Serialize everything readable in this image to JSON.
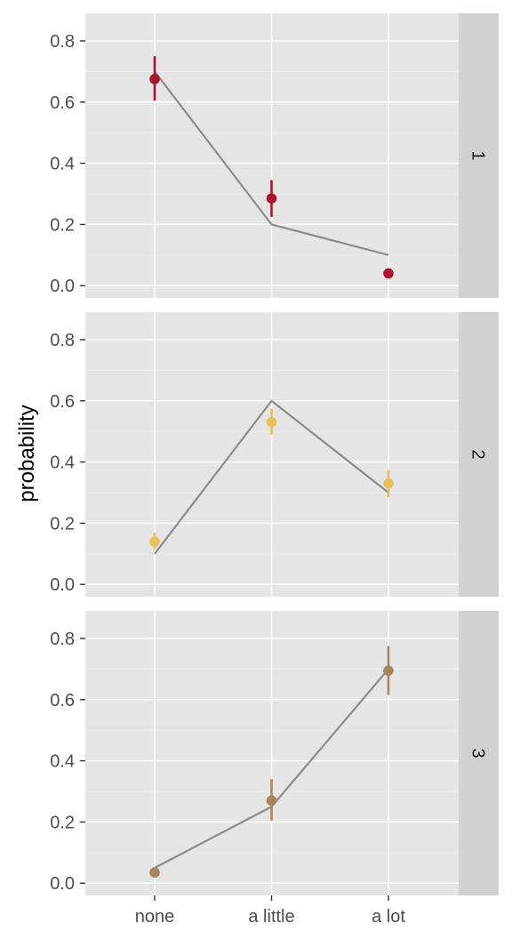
{
  "chart_data": {
    "type": "scatter",
    "ylabel": "probability",
    "xlabel": "",
    "categories": [
      "none",
      "a little",
      "a lot"
    ],
    "y_ticks": [
      "0.0",
      "0.2",
      "0.4",
      "0.6",
      "0.8"
    ],
    "ylim": [
      -0.04,
      0.89
    ],
    "grid": true,
    "colors": {
      "line": "#8c8c8c",
      "panel_bg": "#e5e5e5",
      "strip_bg": "#d1d1d1"
    },
    "panels": [
      {
        "label": "1",
        "color": "#a8162f",
        "points": [
          {
            "category": "none",
            "y": 0.675,
            "lo": 0.605,
            "hi": 0.75
          },
          {
            "category": "a little",
            "y": 0.285,
            "lo": 0.225,
            "hi": 0.345
          },
          {
            "category": "a lot",
            "y": 0.04,
            "lo": 0.04,
            "hi": 0.04
          }
        ],
        "line": [
          0.7,
          0.2,
          0.1
        ]
      },
      {
        "label": "2",
        "color": "#e8c15a",
        "points": [
          {
            "category": "none",
            "y": 0.14,
            "lo": 0.115,
            "hi": 0.17
          },
          {
            "category": "a little",
            "y": 0.53,
            "lo": 0.49,
            "hi": 0.575
          },
          {
            "category": "a lot",
            "y": 0.33,
            "lo": 0.285,
            "hi": 0.375
          }
        ],
        "line": [
          0.1,
          0.6,
          0.3
        ]
      },
      {
        "label": "3",
        "color": "#a8845a",
        "points": [
          {
            "category": "none",
            "y": 0.035,
            "lo": 0.035,
            "hi": 0.035
          },
          {
            "category": "a little",
            "y": 0.27,
            "lo": 0.205,
            "hi": 0.34
          },
          {
            "category": "a lot",
            "y": 0.695,
            "lo": 0.615,
            "hi": 0.775
          }
        ],
        "line": [
          0.05,
          0.25,
          0.7
        ]
      }
    ]
  }
}
